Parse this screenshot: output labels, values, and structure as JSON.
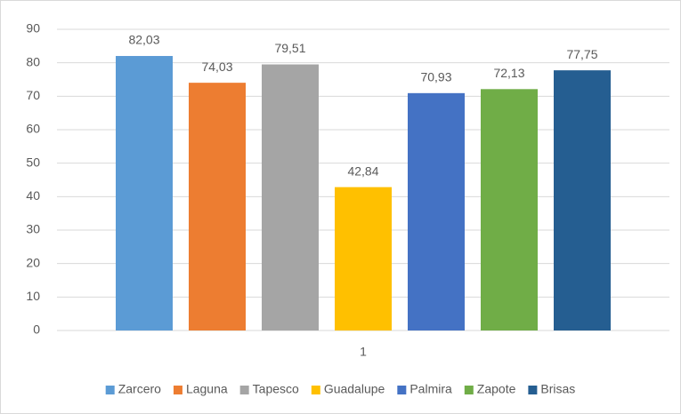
{
  "chart_data": {
    "type": "bar",
    "categories": [
      "1"
    ],
    "series": [
      {
        "name": "Zarcero",
        "color": "#5b9bd5",
        "values": [
          82.03
        ],
        "value_labels": [
          "82,03"
        ]
      },
      {
        "name": "Laguna",
        "color": "#ed7d31",
        "values": [
          74.03
        ],
        "value_labels": [
          "74,03"
        ]
      },
      {
        "name": "Tapesco",
        "color": "#a5a5a5",
        "values": [
          79.51
        ],
        "value_labels": [
          "79,51"
        ]
      },
      {
        "name": "Guadalupe",
        "color": "#ffc000",
        "values": [
          42.84
        ],
        "value_labels": [
          "42,84"
        ]
      },
      {
        "name": "Palmira",
        "color": "#4472c4",
        "values": [
          70.93
        ],
        "value_labels": [
          "70,93"
        ]
      },
      {
        "name": "Zapote",
        "color": "#70ad47",
        "values": [
          72.13
        ],
        "value_labels": [
          "72,13"
        ]
      },
      {
        "name": "Brisas",
        "color": "#255e91",
        "values": [
          77.75
        ],
        "value_labels": [
          "77,75"
        ]
      }
    ],
    "ylim": [
      0,
      90
    ],
    "yticks": [
      0,
      10,
      20,
      30,
      40,
      50,
      60,
      70,
      80,
      90
    ],
    "grid": true,
    "legend": "bottom"
  }
}
